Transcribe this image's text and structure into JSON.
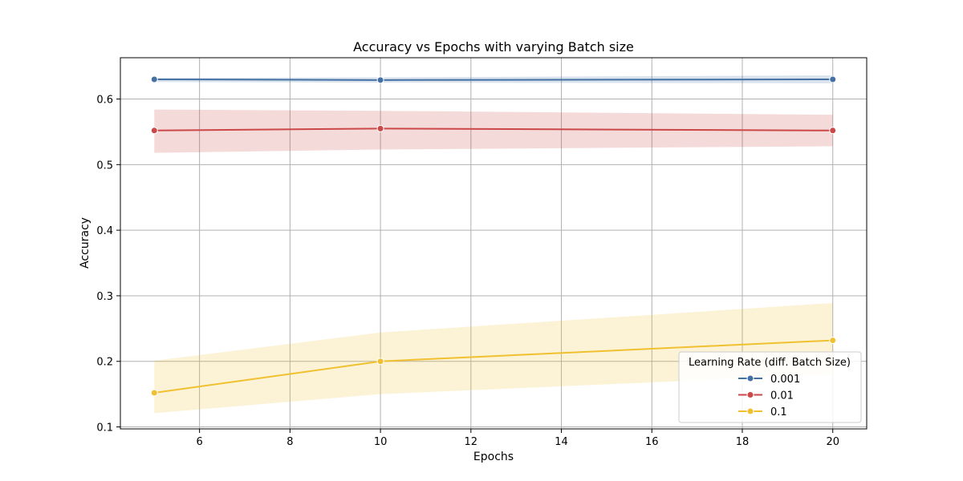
{
  "chart_data": {
    "type": "line",
    "title": "Accuracy vs Epochs with varying Batch size",
    "xlabel": "Epochs",
    "ylabel": "Accuracy",
    "x": [
      5,
      10,
      20
    ],
    "xlim": [
      4.25,
      20.75
    ],
    "ylim": [
      0.097,
      0.663
    ],
    "xticks": [
      6,
      8,
      10,
      12,
      14,
      16,
      18,
      20
    ],
    "yticks": [
      0.1,
      0.2,
      0.3,
      0.4,
      0.5,
      0.6
    ],
    "grid": true,
    "legend": {
      "title": "Learning Rate (diff. Batch Size)",
      "placement": "lower-right"
    },
    "series": [
      {
        "name": "0.001",
        "color": "#4471a4",
        "values": [
          0.63,
          0.629,
          0.63
        ],
        "band_low": [
          0.626,
          0.625,
          0.624
        ],
        "band_high": [
          0.632,
          0.633,
          0.636
        ]
      },
      {
        "name": "0.01",
        "color": "#cc4748",
        "values": [
          0.552,
          0.555,
          0.552
        ],
        "band_low": [
          0.518,
          0.523,
          0.528
        ],
        "band_high": [
          0.584,
          0.582,
          0.576
        ]
      },
      {
        "name": "0.1",
        "color": "#f0c030",
        "values": [
          0.152,
          0.2,
          0.232
        ],
        "band_low": [
          0.121,
          0.15,
          0.18
        ],
        "band_high": [
          0.201,
          0.244,
          0.289
        ]
      }
    ]
  }
}
